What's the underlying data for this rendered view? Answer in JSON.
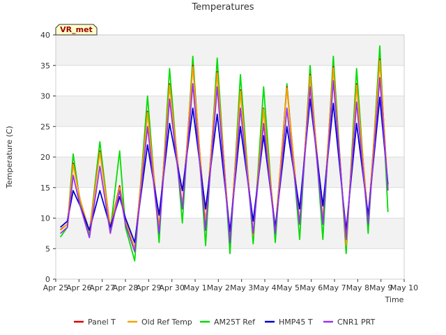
{
  "chart_data": {
    "type": "line",
    "title": "Temperatures",
    "xlabel": "Time",
    "ylabel": "Temperature (C)",
    "site_label": "VR_met",
    "ylim": [
      0,
      40
    ],
    "xlim": [
      0,
      15
    ],
    "y_ticks": [
      0,
      5,
      10,
      15,
      20,
      25,
      30,
      35,
      40
    ],
    "x_ticks": [
      {
        "x": 0,
        "label": "Apr 25"
      },
      {
        "x": 1,
        "label": "Apr 26"
      },
      {
        "x": 2,
        "label": "Apr 27"
      },
      {
        "x": 3,
        "label": "Apr 28"
      },
      {
        "x": 4,
        "label": "Apr 29"
      },
      {
        "x": 5,
        "label": "Apr 30"
      },
      {
        "x": 6,
        "label": "May 1"
      },
      {
        "x": 7,
        "label": "May 2"
      },
      {
        "x": 8,
        "label": "May 3"
      },
      {
        "x": 9,
        "label": "May 4"
      },
      {
        "x": 10,
        "label": "May 5"
      },
      {
        "x": 11,
        "label": "May 6"
      },
      {
        "x": 12,
        "label": "May 7"
      },
      {
        "x": 13,
        "label": "May 8"
      },
      {
        "x": 14,
        "label": "May 9"
      },
      {
        "x": 15,
        "label": "May 10"
      }
    ],
    "grid": "horizontal bands",
    "legend_position": "bottom",
    "series": [
      {
        "name": "Panel T",
        "color": "#dd0000",
        "points": [
          [
            0.2,
            8.1
          ],
          [
            0.5,
            9.0
          ],
          [
            0.75,
            19.0
          ],
          [
            1.05,
            13.0
          ],
          [
            1.45,
            7.8
          ],
          [
            1.9,
            21.0
          ],
          [
            2.35,
            8.5
          ],
          [
            2.75,
            15.3
          ],
          [
            3.0,
            9.5
          ],
          [
            3.4,
            5.0
          ],
          [
            3.95,
            27.5
          ],
          [
            4.45,
            8.2
          ],
          [
            4.9,
            32.0
          ],
          [
            5.45,
            11.8
          ],
          [
            5.9,
            35.0
          ],
          [
            6.45,
            9.0
          ],
          [
            6.95,
            34.0
          ],
          [
            7.5,
            6.3
          ],
          [
            7.95,
            31.0
          ],
          [
            8.5,
            7.2
          ],
          [
            8.95,
            28.0
          ],
          [
            9.45,
            7.8
          ],
          [
            9.95,
            31.5
          ],
          [
            10.5,
            9.0
          ],
          [
            10.95,
            33.5
          ],
          [
            11.5,
            9.5
          ],
          [
            11.95,
            34.8
          ],
          [
            12.5,
            5.5
          ],
          [
            12.95,
            32.0
          ],
          [
            13.45,
            9.5
          ],
          [
            13.95,
            36.0
          ],
          [
            14.3,
            14.5
          ]
        ]
      },
      {
        "name": "Old Ref Temp",
        "color": "#f5a500",
        "points": [
          [
            0.2,
            8.0
          ],
          [
            0.5,
            9.0
          ],
          [
            0.75,
            18.8
          ],
          [
            1.05,
            13.0
          ],
          [
            1.45,
            7.8
          ],
          [
            1.9,
            20.8
          ],
          [
            2.35,
            8.5
          ],
          [
            2.75,
            15.0
          ],
          [
            3.0,
            9.5
          ],
          [
            3.4,
            5.0
          ],
          [
            3.95,
            27.3
          ],
          [
            4.45,
            8.2
          ],
          [
            4.9,
            31.8
          ],
          [
            5.45,
            11.8
          ],
          [
            5.9,
            34.8
          ],
          [
            6.45,
            9.0
          ],
          [
            6.95,
            33.8
          ],
          [
            7.5,
            6.3
          ],
          [
            7.95,
            30.8
          ],
          [
            8.5,
            7.2
          ],
          [
            8.95,
            27.8
          ],
          [
            9.45,
            7.8
          ],
          [
            9.95,
            31.3
          ],
          [
            10.5,
            9.0
          ],
          [
            10.95,
            33.3
          ],
          [
            11.5,
            9.5
          ],
          [
            11.95,
            34.6
          ],
          [
            12.5,
            5.5
          ],
          [
            12.95,
            31.8
          ],
          [
            13.45,
            9.5
          ],
          [
            13.95,
            35.8
          ],
          [
            14.3,
            14.5
          ]
        ]
      },
      {
        "name": "AM25T Ref",
        "color": "#00dd00",
        "points": [
          [
            0.2,
            6.9
          ],
          [
            0.5,
            8.5
          ],
          [
            0.75,
            20.5
          ],
          [
            1.05,
            12.5
          ],
          [
            1.45,
            7.5
          ],
          [
            1.9,
            22.5
          ],
          [
            2.35,
            8.0
          ],
          [
            2.75,
            21.0
          ],
          [
            3.0,
            8.5
          ],
          [
            3.4,
            3.0
          ],
          [
            3.95,
            30.0
          ],
          [
            4.45,
            6.0
          ],
          [
            4.9,
            34.5
          ],
          [
            5.45,
            9.2
          ],
          [
            5.9,
            36.5
          ],
          [
            6.45,
            5.5
          ],
          [
            6.95,
            36.2
          ],
          [
            7.5,
            4.2
          ],
          [
            7.95,
            33.5
          ],
          [
            8.5,
            5.8
          ],
          [
            8.95,
            31.5
          ],
          [
            9.45,
            6.0
          ],
          [
            9.95,
            32.0
          ],
          [
            10.5,
            6.5
          ],
          [
            10.95,
            35.0
          ],
          [
            11.5,
            6.5
          ],
          [
            11.95,
            36.5
          ],
          [
            12.5,
            4.2
          ],
          [
            12.95,
            34.5
          ],
          [
            13.45,
            7.5
          ],
          [
            13.95,
            38.2
          ],
          [
            14.3,
            11.0
          ]
        ]
      },
      {
        "name": "HMP45 T",
        "color": "#0000cc",
        "points": [
          [
            0.2,
            8.5
          ],
          [
            0.5,
            9.5
          ],
          [
            0.75,
            14.5
          ],
          [
            1.05,
            12.0
          ],
          [
            1.45,
            8.0
          ],
          [
            1.9,
            14.5
          ],
          [
            2.35,
            8.5
          ],
          [
            2.75,
            13.5
          ],
          [
            3.0,
            10.0
          ],
          [
            3.4,
            6.0
          ],
          [
            3.95,
            22.0
          ],
          [
            4.45,
            10.5
          ],
          [
            4.9,
            25.5
          ],
          [
            5.45,
            14.5
          ],
          [
            5.9,
            28.0
          ],
          [
            6.45,
            11.5
          ],
          [
            6.95,
            27.0
          ],
          [
            7.5,
            7.8
          ],
          [
            7.95,
            25.0
          ],
          [
            8.5,
            9.5
          ],
          [
            8.95,
            23.5
          ],
          [
            9.45,
            8.5
          ],
          [
            9.95,
            25.0
          ],
          [
            10.5,
            11.5
          ],
          [
            10.95,
            29.5
          ],
          [
            11.5,
            12.0
          ],
          [
            11.95,
            28.8
          ],
          [
            12.5,
            8.0
          ],
          [
            12.95,
            25.5
          ],
          [
            13.45,
            10.5
          ],
          [
            13.95,
            29.8
          ],
          [
            14.3,
            15.5
          ]
        ]
      },
      {
        "name": "CNR1 PRT",
        "color": "#9933ee",
        "points": [
          [
            0.2,
            7.5
          ],
          [
            0.5,
            8.5
          ],
          [
            0.75,
            17.0
          ],
          [
            1.05,
            12.0
          ],
          [
            1.45,
            6.8
          ],
          [
            1.9,
            18.5
          ],
          [
            2.35,
            7.5
          ],
          [
            2.75,
            14.5
          ],
          [
            3.0,
            9.0
          ],
          [
            3.4,
            4.5
          ],
          [
            3.95,
            25.0
          ],
          [
            4.45,
            7.5
          ],
          [
            4.9,
            29.5
          ],
          [
            5.45,
            11.5
          ],
          [
            5.9,
            32.0
          ],
          [
            6.45,
            8.0
          ],
          [
            6.95,
            31.5
          ],
          [
            7.5,
            6.0
          ],
          [
            7.95,
            28.0
          ],
          [
            8.5,
            7.5
          ],
          [
            8.95,
            25.5
          ],
          [
            9.45,
            7.5
          ],
          [
            9.95,
            28.0
          ],
          [
            10.5,
            9.0
          ],
          [
            10.95,
            31.5
          ],
          [
            11.5,
            9.0
          ],
          [
            11.95,
            32.5
          ],
          [
            12.5,
            6.5
          ],
          [
            12.95,
            29.0
          ],
          [
            13.45,
            9.0
          ],
          [
            13.95,
            33.0
          ],
          [
            14.3,
            14.5
          ]
        ]
      }
    ]
  }
}
